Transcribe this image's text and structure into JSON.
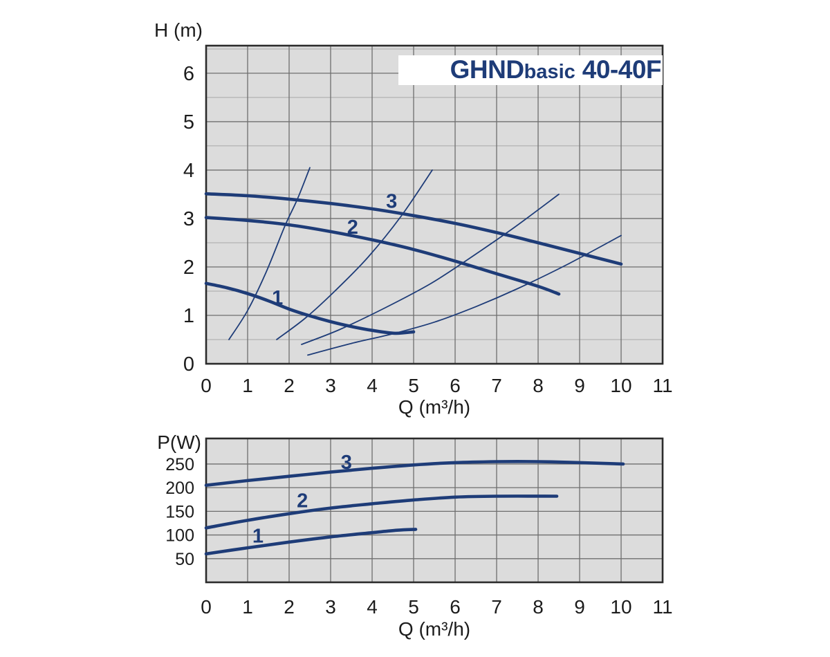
{
  "title": {
    "brand": "GHND",
    "variant": "basic",
    "model": "40-40F"
  },
  "colors": {
    "curve": "#1e3c78",
    "plot_bg": "#dcdcdc",
    "grid_major": "#6e6e6e",
    "grid_minor": "#a8a8a8",
    "border": "#2b2b2b",
    "tick_text": "#1c1c1c",
    "title_text": "#1e3c78",
    "title_bg": "#ffffff"
  },
  "chart_data": [
    {
      "id": "head-curve-chart",
      "type": "line",
      "title": "GHNDbasic 40-40F",
      "xlabel": "Q (m³/h)",
      "ylabel": "H (m)",
      "xlim": [
        0,
        11
      ],
      "ylim": [
        0,
        6.57
      ],
      "xticks": [
        0,
        1,
        2,
        3,
        4,
        5,
        6,
        7,
        8,
        9,
        10,
        11
      ],
      "yticks": [
        0,
        1,
        2,
        3,
        4,
        5,
        6
      ],
      "y_minor": [
        0.5,
        1.5,
        2.5,
        3.5,
        4.5,
        5.5,
        6.5
      ],
      "grid": "on",
      "legend": "none",
      "series": [
        {
          "name": "1",
          "label_pos": [
            1.72,
            1.37
          ],
          "points": [
            [
              0,
              1.66
            ],
            [
              0.5,
              1.57
            ],
            [
              1,
              1.45
            ],
            [
              1.5,
              1.3
            ],
            [
              2,
              1.13
            ],
            [
              2.5,
              0.99
            ],
            [
              3,
              0.87
            ],
            [
              3.5,
              0.77
            ],
            [
              4,
              0.69
            ],
            [
              4.55,
              0.63
            ],
            [
              5,
              0.66
            ]
          ]
        },
        {
          "name": "2",
          "label_pos": [
            3.53,
            2.83
          ],
          "points": [
            [
              0,
              3.02
            ],
            [
              1,
              2.96
            ],
            [
              2,
              2.87
            ],
            [
              3,
              2.73
            ],
            [
              4,
              2.56
            ],
            [
              5,
              2.36
            ],
            [
              6,
              2.12
            ],
            [
              7,
              1.86
            ],
            [
              8,
              1.6
            ],
            [
              8.5,
              1.44
            ]
          ]
        },
        {
          "name": "3",
          "label_pos": [
            4.47,
            3.36
          ],
          "points": [
            [
              0,
              3.51
            ],
            [
              1,
              3.47
            ],
            [
              2,
              3.4
            ],
            [
              3,
              3.31
            ],
            [
              4,
              3.2
            ],
            [
              5,
              3.06
            ],
            [
              6,
              2.9
            ],
            [
              7,
              2.71
            ],
            [
              8,
              2.5
            ],
            [
              9,
              2.28
            ],
            [
              10,
              2.06
            ]
          ]
        }
      ],
      "system_curves": [
        {
          "points": [
            [
              0.55,
              0.5
            ],
            [
              1.0,
              1.1
            ],
            [
              1.45,
              1.9
            ],
            [
              1.9,
              2.85
            ],
            [
              2.2,
              3.4
            ],
            [
              2.5,
              4.05
            ]
          ]
        },
        {
          "points": [
            [
              1.7,
              0.5
            ],
            [
              2.4,
              0.95
            ],
            [
              3.1,
              1.5
            ],
            [
              3.9,
              2.2
            ],
            [
              4.7,
              3.05
            ],
            [
              5.45,
              4.0
            ]
          ]
        },
        {
          "points": [
            [
              2.3,
              0.4
            ],
            [
              3.2,
              0.7
            ],
            [
              4.3,
              1.15
            ],
            [
              5.4,
              1.65
            ],
            [
              6.3,
              2.15
            ],
            [
              7.4,
              2.8
            ],
            [
              8.5,
              3.5
            ]
          ]
        },
        {
          "points": [
            [
              2.45,
              0.18
            ],
            [
              3.5,
              0.42
            ],
            [
              4.5,
              0.62
            ],
            [
              5.5,
              0.86
            ],
            [
              6.5,
              1.18
            ],
            [
              7.5,
              1.55
            ],
            [
              8.7,
              2.05
            ],
            [
              10,
              2.65
            ]
          ]
        }
      ]
    },
    {
      "id": "power-curve-chart",
      "type": "line",
      "title": "",
      "xlabel": "Q (m³/h)",
      "ylabel": "P(W)",
      "xlim": [
        0,
        11
      ],
      "ylim": [
        0,
        304
      ],
      "xticks": [
        0,
        1,
        2,
        3,
        4,
        5,
        6,
        7,
        8,
        9,
        10,
        11
      ],
      "yticks": [
        50,
        100,
        150,
        200,
        250
      ],
      "y_minor": [],
      "grid": "on",
      "legend": "none",
      "series": [
        {
          "name": "1",
          "label_pos": [
            1.25,
            99
          ],
          "points": [
            [
              0,
              60
            ],
            [
              1,
              73
            ],
            [
              2,
              85
            ],
            [
              3,
              96
            ],
            [
              4,
              105
            ],
            [
              4.6,
              110
            ],
            [
              5.05,
              112
            ]
          ]
        },
        {
          "name": "2",
          "label_pos": [
            2.32,
            173
          ],
          "points": [
            [
              0,
              115
            ],
            [
              1,
              131
            ],
            [
              2,
              145
            ],
            [
              3,
              157
            ],
            [
              4,
              166
            ],
            [
              5,
              174
            ],
            [
              6,
              180
            ],
            [
              7,
              182
            ],
            [
              8.45,
              182
            ]
          ]
        },
        {
          "name": "3",
          "label_pos": [
            3.38,
            254
          ],
          "points": [
            [
              0,
              205
            ],
            [
              1,
              215
            ],
            [
              2,
              224
            ],
            [
              3,
              233
            ],
            [
              4,
              241
            ],
            [
              5,
              248
            ],
            [
              6,
              253
            ],
            [
              7,
              255
            ],
            [
              8,
              255
            ],
            [
              9,
              253
            ],
            [
              10.05,
              250
            ]
          ]
        }
      ],
      "system_curves": []
    }
  ]
}
